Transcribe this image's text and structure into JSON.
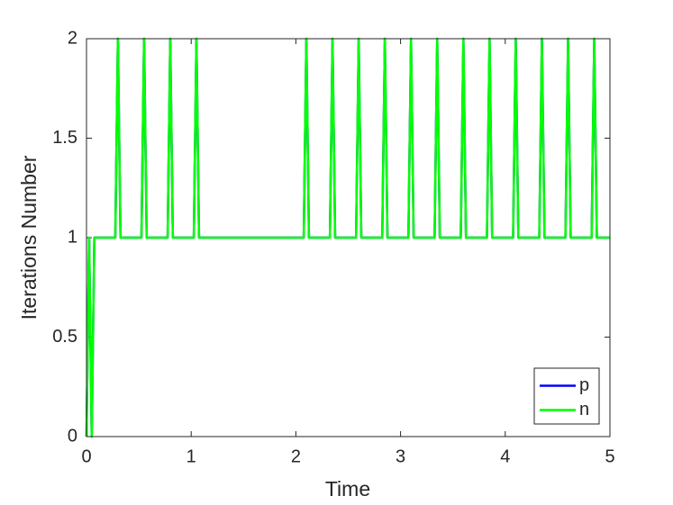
{
  "chart_data": {
    "type": "line",
    "xlabel": "Time",
    "ylabel": "Iterations Number",
    "x": [
      0,
      0.025,
      0.05,
      0.075,
      0.275,
      0.3,
      0.325,
      0.525,
      0.55,
      0.575,
      0.775,
      0.8,
      0.825,
      1.025,
      1.05,
      1.075,
      2.075,
      2.1,
      2.125,
      2.325,
      2.35,
      2.375,
      2.575,
      2.6,
      2.625,
      2.825,
      2.85,
      2.875,
      3.075,
      3.1,
      3.125,
      3.325,
      3.35,
      3.375,
      3.575,
      3.6,
      3.625,
      3.825,
      3.85,
      3.875,
      4.075,
      4.1,
      4.125,
      4.325,
      4.35,
      4.375,
      4.575,
      4.6,
      4.625,
      4.825,
      4.85,
      4.875,
      5
    ],
    "series": [
      {
        "name": "p",
        "color": "#0000ff",
        "values": [
          0,
          1,
          0,
          1,
          1,
          2,
          1,
          1,
          2,
          1,
          1,
          2,
          1,
          1,
          2,
          1,
          1,
          2,
          1,
          1,
          2,
          1,
          1,
          2,
          1,
          1,
          2,
          1,
          1,
          2,
          1,
          1,
          2,
          1,
          1,
          2,
          1,
          1,
          2,
          1,
          1,
          2,
          1,
          1,
          2,
          1,
          1,
          2,
          1,
          1,
          2,
          1,
          1
        ]
      },
      {
        "name": "n",
        "color": "#00ff00",
        "values": [
          0,
          1,
          0,
          1,
          1,
          2,
          1,
          1,
          2,
          1,
          1,
          2,
          1,
          1,
          2,
          1,
          1,
          2,
          1,
          1,
          2,
          1,
          1,
          2,
          1,
          1,
          2,
          1,
          1,
          2,
          1,
          1,
          2,
          1,
          1,
          2,
          1,
          1,
          2,
          1,
          1,
          2,
          1,
          1,
          2,
          1,
          1,
          2,
          1,
          1,
          2,
          1,
          1
        ]
      }
    ],
    "xlim": [
      0,
      5
    ],
    "xticks": [
      0,
      1,
      2,
      3,
      4,
      5
    ],
    "ylim": [
      0,
      2
    ],
    "yticks": [
      0,
      0.5,
      1,
      1.5,
      2
    ],
    "grid": false,
    "legend": "southeast"
  }
}
